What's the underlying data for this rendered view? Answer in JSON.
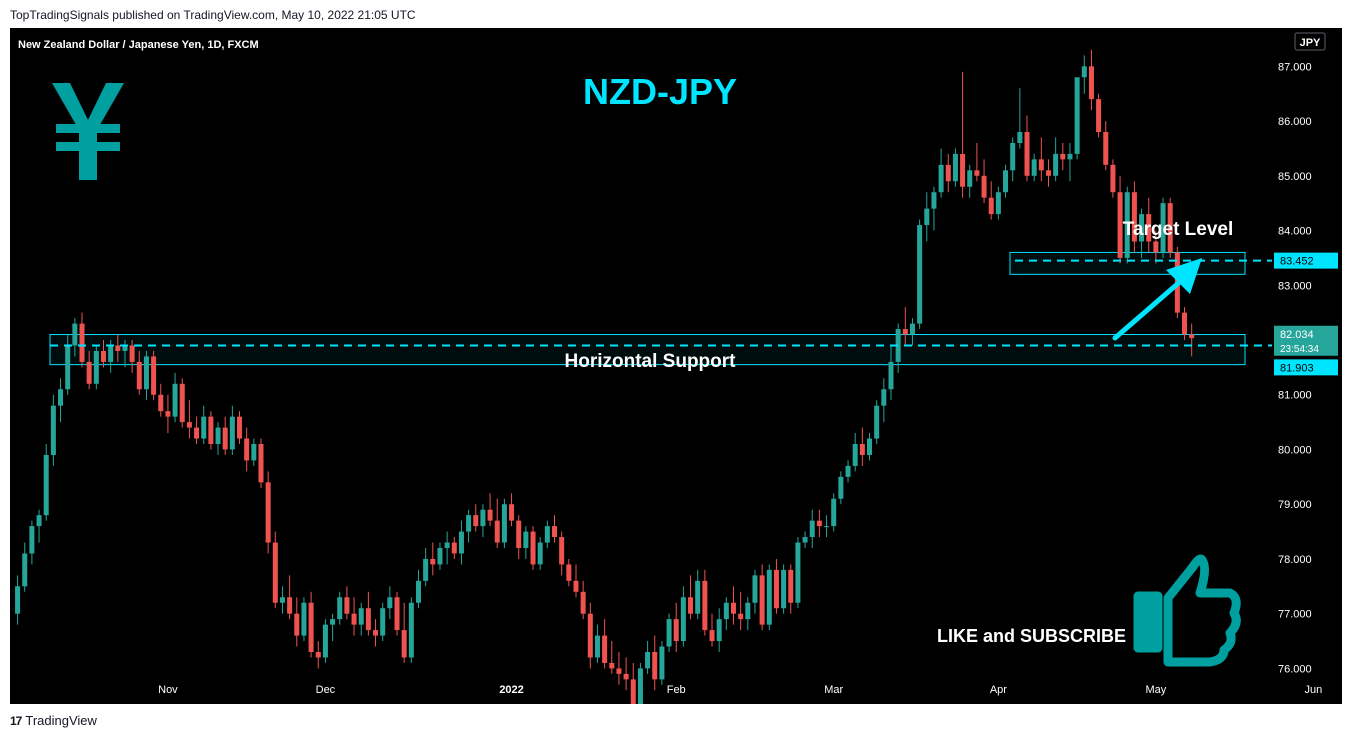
{
  "header": {
    "published": "TopTradingSignals published on TradingView.com, May 10, 2022 21:05 UTC"
  },
  "footer": {
    "brand": "TradingView"
  },
  "chart_data": {
    "type": "candlestick",
    "title": "NZD-JPY",
    "symbol_label": "New Zealand Dollar / Japanese Yen, 1D, FXCM",
    "currency_badge": "JPY",
    "y_ticks": [
      "87.000",
      "86.000",
      "85.000",
      "84.000",
      "83.000",
      "81.000",
      "80.000",
      "79.000",
      "78.000",
      "77.000",
      "76.000"
    ],
    "x_ticks": [
      "Nov",
      "Dec",
      "2022",
      "Feb",
      "Mar",
      "Apr",
      "May",
      "Jun"
    ],
    "ylim": [
      75.35,
      87.7
    ],
    "price_labels": {
      "target": "83.452",
      "current": "82.034",
      "countdown": "23:54:34",
      "support": "81.903"
    },
    "annotations": {
      "target": "Target Level",
      "support": "Horizontal Support",
      "cta": "LIKE and SUBSCRIBE"
    },
    "levels": {
      "support": 81.9,
      "target": 83.45,
      "current": 82.034
    },
    "zones": {
      "support_zone": [
        81.55,
        82.1
      ],
      "target_zone": [
        83.2,
        83.6
      ]
    },
    "colors": {
      "up": "#26a69a",
      "down": "#ef5350",
      "accent": "#00e5ff",
      "logo": "#00a0a0",
      "current_label": "#26a69a"
    },
    "icons": {
      "logo": "yen-icon",
      "cta": "thumbs-up-icon"
    },
    "candles": [
      [
        77.0,
        77.7,
        76.8,
        77.5
      ],
      [
        77.5,
        78.3,
        77.4,
        78.1
      ],
      [
        78.1,
        78.7,
        77.9,
        78.6
      ],
      [
        78.6,
        78.9,
        78.3,
        78.8
      ],
      [
        78.8,
        80.1,
        78.7,
        79.9
      ],
      [
        79.9,
        81.0,
        79.7,
        80.8
      ],
      [
        80.8,
        81.3,
        80.5,
        81.1
      ],
      [
        81.1,
        82.1,
        81.0,
        81.9
      ],
      [
        81.9,
        82.4,
        81.7,
        82.3
      ],
      [
        82.3,
        82.5,
        81.5,
        81.6
      ],
      [
        81.6,
        81.8,
        81.1,
        81.2
      ],
      [
        81.2,
        81.9,
        81.1,
        81.8
      ],
      [
        81.8,
        82.0,
        81.5,
        81.6
      ],
      [
        81.6,
        82.0,
        81.4,
        81.9
      ],
      [
        81.9,
        82.1,
        81.6,
        81.8
      ],
      [
        81.8,
        82.0,
        81.5,
        81.9
      ],
      [
        81.9,
        82.0,
        81.4,
        81.6
      ],
      [
        81.6,
        81.8,
        81.0,
        81.1
      ],
      [
        81.1,
        81.8,
        80.9,
        81.7
      ],
      [
        81.7,
        81.8,
        80.9,
        81.0
      ],
      [
        81.0,
        81.2,
        80.6,
        80.7
      ],
      [
        80.7,
        81.0,
        80.3,
        80.6
      ],
      [
        80.6,
        81.4,
        80.5,
        81.2
      ],
      [
        81.2,
        81.3,
        80.4,
        80.5
      ],
      [
        80.5,
        80.9,
        80.2,
        80.4
      ],
      [
        80.4,
        80.6,
        80.1,
        80.2
      ],
      [
        80.2,
        80.8,
        80.1,
        80.6
      ],
      [
        80.6,
        80.7,
        80.0,
        80.1
      ],
      [
        80.1,
        80.5,
        79.9,
        80.4
      ],
      [
        80.4,
        80.6,
        79.9,
        80.0
      ],
      [
        80.0,
        80.8,
        79.9,
        80.6
      ],
      [
        80.6,
        80.7,
        80.1,
        80.2
      ],
      [
        80.2,
        80.4,
        79.6,
        79.8
      ],
      [
        79.8,
        80.2,
        79.7,
        80.1
      ],
      [
        80.1,
        80.2,
        79.3,
        79.4
      ],
      [
        79.4,
        79.6,
        78.1,
        78.3
      ],
      [
        78.3,
        78.5,
        77.1,
        77.2
      ],
      [
        77.2,
        77.5,
        77.0,
        77.3
      ],
      [
        77.3,
        77.7,
        76.9,
        77.0
      ],
      [
        77.0,
        77.3,
        76.4,
        76.6
      ],
      [
        76.6,
        77.3,
        76.5,
        77.2
      ],
      [
        77.2,
        77.4,
        76.2,
        76.3
      ],
      [
        76.3,
        76.5,
        76.0,
        76.2
      ],
      [
        76.2,
        76.9,
        76.1,
        76.8
      ],
      [
        76.8,
        77.0,
        76.5,
        76.9
      ],
      [
        76.9,
        77.4,
        76.8,
        77.3
      ],
      [
        77.3,
        77.5,
        76.9,
        77.0
      ],
      [
        77.0,
        77.3,
        76.6,
        76.8
      ],
      [
        76.8,
        77.2,
        76.6,
        77.1
      ],
      [
        77.1,
        77.4,
        76.6,
        76.7
      ],
      [
        76.7,
        76.9,
        76.4,
        76.6
      ],
      [
        76.6,
        77.2,
        76.5,
        77.1
      ],
      [
        77.1,
        77.5,
        76.9,
        77.3
      ],
      [
        77.3,
        77.4,
        76.6,
        76.7
      ],
      [
        76.7,
        77.2,
        76.1,
        76.2
      ],
      [
        76.2,
        77.3,
        76.1,
        77.2
      ],
      [
        77.2,
        77.8,
        77.1,
        77.6
      ],
      [
        77.6,
        78.2,
        77.5,
        78.0
      ],
      [
        78.0,
        78.3,
        77.7,
        77.9
      ],
      [
        77.9,
        78.3,
        77.8,
        78.2
      ],
      [
        78.2,
        78.5,
        77.9,
        78.3
      ],
      [
        78.3,
        78.4,
        78.0,
        78.1
      ],
      [
        78.1,
        78.7,
        77.9,
        78.5
      ],
      [
        78.5,
        78.9,
        78.3,
        78.8
      ],
      [
        78.8,
        79.0,
        78.5,
        78.6
      ],
      [
        78.6,
        79.0,
        78.4,
        78.9
      ],
      [
        78.9,
        79.2,
        78.6,
        78.7
      ],
      [
        78.7,
        79.1,
        78.2,
        78.3
      ],
      [
        78.3,
        79.1,
        78.2,
        79.0
      ],
      [
        79.0,
        79.2,
        78.6,
        78.7
      ],
      [
        78.7,
        78.8,
        78.0,
        78.2
      ],
      [
        78.2,
        78.6,
        78.0,
        78.5
      ],
      [
        78.5,
        78.6,
        77.8,
        77.9
      ],
      [
        77.9,
        78.4,
        77.8,
        78.3
      ],
      [
        78.3,
        78.7,
        78.2,
        78.6
      ],
      [
        78.6,
        78.8,
        78.3,
        78.4
      ],
      [
        78.4,
        78.5,
        77.7,
        77.9
      ],
      [
        77.9,
        78.0,
        77.5,
        77.6
      ],
      [
        77.6,
        77.9,
        77.3,
        77.4
      ],
      [
        77.4,
        77.6,
        76.9,
        77.0
      ],
      [
        77.0,
        77.2,
        76.0,
        76.2
      ],
      [
        76.2,
        76.8,
        76.1,
        76.6
      ],
      [
        76.6,
        76.9,
        76.0,
        76.1
      ],
      [
        76.1,
        76.5,
        75.9,
        76.0
      ],
      [
        76.0,
        76.3,
        75.7,
        75.9
      ],
      [
        75.9,
        76.2,
        75.6,
        75.8
      ],
      [
        75.8,
        76.1,
        75.2,
        75.3
      ],
      [
        75.3,
        76.1,
        75.2,
        76.0
      ],
      [
        76.0,
        76.5,
        75.9,
        76.3
      ],
      [
        76.3,
        76.6,
        75.6,
        75.8
      ],
      [
        75.8,
        76.5,
        75.7,
        76.4
      ],
      [
        76.4,
        77.0,
        76.3,
        76.9
      ],
      [
        76.9,
        77.2,
        76.3,
        76.5
      ],
      [
        76.5,
        77.5,
        76.4,
        77.3
      ],
      [
        77.3,
        77.7,
        76.9,
        77.0
      ],
      [
        77.0,
        77.8,
        76.9,
        77.6
      ],
      [
        77.6,
        77.8,
        76.6,
        76.7
      ],
      [
        76.7,
        77.0,
        76.4,
        76.5
      ],
      [
        76.5,
        77.1,
        76.3,
        76.9
      ],
      [
        76.9,
        77.3,
        76.7,
        77.2
      ],
      [
        77.2,
        77.5,
        76.8,
        77.0
      ],
      [
        77.0,
        77.4,
        76.7,
        76.9
      ],
      [
        76.9,
        77.3,
        76.7,
        77.2
      ],
      [
        77.2,
        77.8,
        77.0,
        77.7
      ],
      [
        77.7,
        77.9,
        76.7,
        76.8
      ],
      [
        76.8,
        77.9,
        76.7,
        77.8
      ],
      [
        77.8,
        78.0,
        77.0,
        77.1
      ],
      [
        77.1,
        77.9,
        77.0,
        77.8
      ],
      [
        77.8,
        77.9,
        77.0,
        77.2
      ],
      [
        77.2,
        78.4,
        77.1,
        78.3
      ],
      [
        78.3,
        78.5,
        78.2,
        78.4
      ],
      [
        78.4,
        78.9,
        78.2,
        78.7
      ],
      [
        78.7,
        78.9,
        78.4,
        78.6
      ],
      [
        78.6,
        78.8,
        78.4,
        78.6
      ],
      [
        78.6,
        79.2,
        78.5,
        79.1
      ],
      [
        79.1,
        79.6,
        79.0,
        79.5
      ],
      [
        79.5,
        79.8,
        79.4,
        79.7
      ],
      [
        79.7,
        80.3,
        79.6,
        80.1
      ],
      [
        80.1,
        80.4,
        79.7,
        79.9
      ],
      [
        79.9,
        80.3,
        79.8,
        80.2
      ],
      [
        80.2,
        80.9,
        80.1,
        80.8
      ],
      [
        80.8,
        81.3,
        80.5,
        81.1
      ],
      [
        81.1,
        81.9,
        80.9,
        81.6
      ],
      [
        81.6,
        82.3,
        81.4,
        82.2
      ],
      [
        82.2,
        82.6,
        81.9,
        82.1
      ],
      [
        82.1,
        82.4,
        81.9,
        82.3
      ],
      [
        82.3,
        84.2,
        82.2,
        84.1
      ],
      [
        84.1,
        84.7,
        83.8,
        84.4
      ],
      [
        84.4,
        84.8,
        84.0,
        84.7
      ],
      [
        84.7,
        85.5,
        84.6,
        85.2
      ],
      [
        85.2,
        85.4,
        84.7,
        84.9
      ],
      [
        84.9,
        85.5,
        84.8,
        85.4
      ],
      [
        85.4,
        86.9,
        84.6,
        84.8
      ],
      [
        84.8,
        85.2,
        84.6,
        85.1
      ],
      [
        85.1,
        85.6,
        84.9,
        85.0
      ],
      [
        85.0,
        85.3,
        84.5,
        84.6
      ],
      [
        84.6,
        84.9,
        84.2,
        84.3
      ],
      [
        84.3,
        84.8,
        84.2,
        84.7
      ],
      [
        84.7,
        85.2,
        84.6,
        85.1
      ],
      [
        85.1,
        85.7,
        84.9,
        85.6
      ],
      [
        85.6,
        86.6,
        85.5,
        85.8
      ],
      [
        85.8,
        86.1,
        84.9,
        85.0
      ],
      [
        85.0,
        85.4,
        84.9,
        85.3
      ],
      [
        85.3,
        85.7,
        84.9,
        85.1
      ],
      [
        85.1,
        85.3,
        84.8,
        85.0
      ],
      [
        85.0,
        85.7,
        84.9,
        85.4
      ],
      [
        85.4,
        85.6,
        85.1,
        85.3
      ],
      [
        85.3,
        85.6,
        84.9,
        85.4
      ],
      [
        85.4,
        86.7,
        85.3,
        86.8
      ],
      [
        86.8,
        87.2,
        86.5,
        87.0
      ],
      [
        87.0,
        87.3,
        86.2,
        86.4
      ],
      [
        86.4,
        86.5,
        85.7,
        85.8
      ],
      [
        85.8,
        86.0,
        85.1,
        85.2
      ],
      [
        85.2,
        85.3,
        84.6,
        84.7
      ],
      [
        84.7,
        85.0,
        83.4,
        83.5
      ],
      [
        83.5,
        84.8,
        83.4,
        84.7
      ],
      [
        84.7,
        84.9,
        83.6,
        83.8
      ],
      [
        83.8,
        84.4,
        83.5,
        84.3
      ],
      [
        84.3,
        84.6,
        83.6,
        83.8
      ],
      [
        83.8,
        84.0,
        83.4,
        83.6
      ],
      [
        83.6,
        84.6,
        83.5,
        84.5
      ],
      [
        84.5,
        84.6,
        83.5,
        83.6
      ],
      [
        83.6,
        83.7,
        82.4,
        82.5
      ],
      [
        82.5,
        82.6,
        82.0,
        82.1
      ],
      [
        82.1,
        82.3,
        81.7,
        82.034
      ]
    ]
  }
}
